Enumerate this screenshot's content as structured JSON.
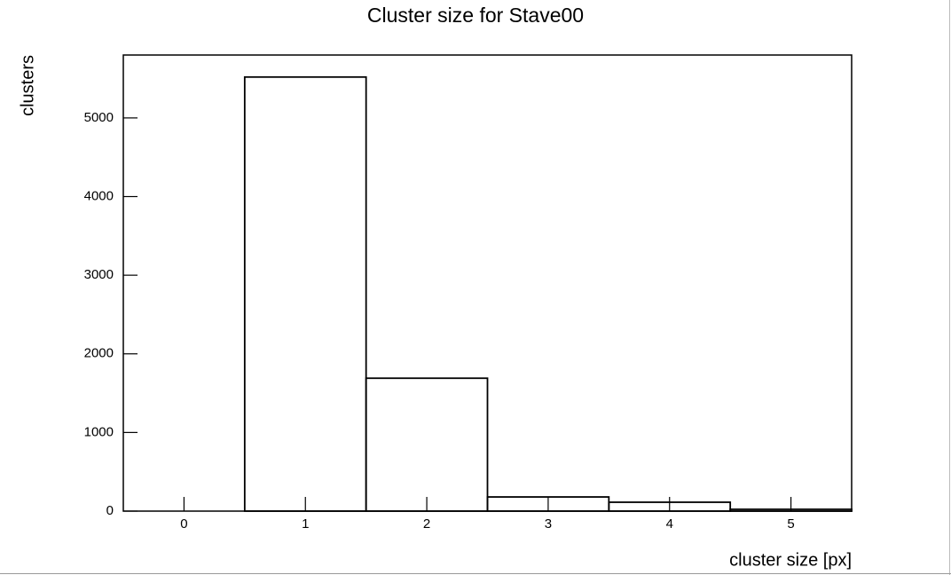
{
  "chart_data": {
    "type": "histogram",
    "title": "Cluster size for Stave00",
    "xlabel": "cluster size [px]",
    "ylabel": "clusters",
    "bins": [
      -0.5,
      0.5,
      1.5,
      2.5,
      3.5,
      4.5,
      5.5
    ],
    "values": [
      0,
      5520,
      1690,
      180,
      113,
      23
    ],
    "color": "#000000",
    "xlim": [
      -0.5,
      5.5
    ],
    "xticks": [
      0,
      1,
      2,
      3,
      4,
      5
    ],
    "ylim": [
      0,
      5800
    ],
    "yticks": [
      0,
      1000,
      2000,
      3000,
      4000,
      5000
    ]
  }
}
